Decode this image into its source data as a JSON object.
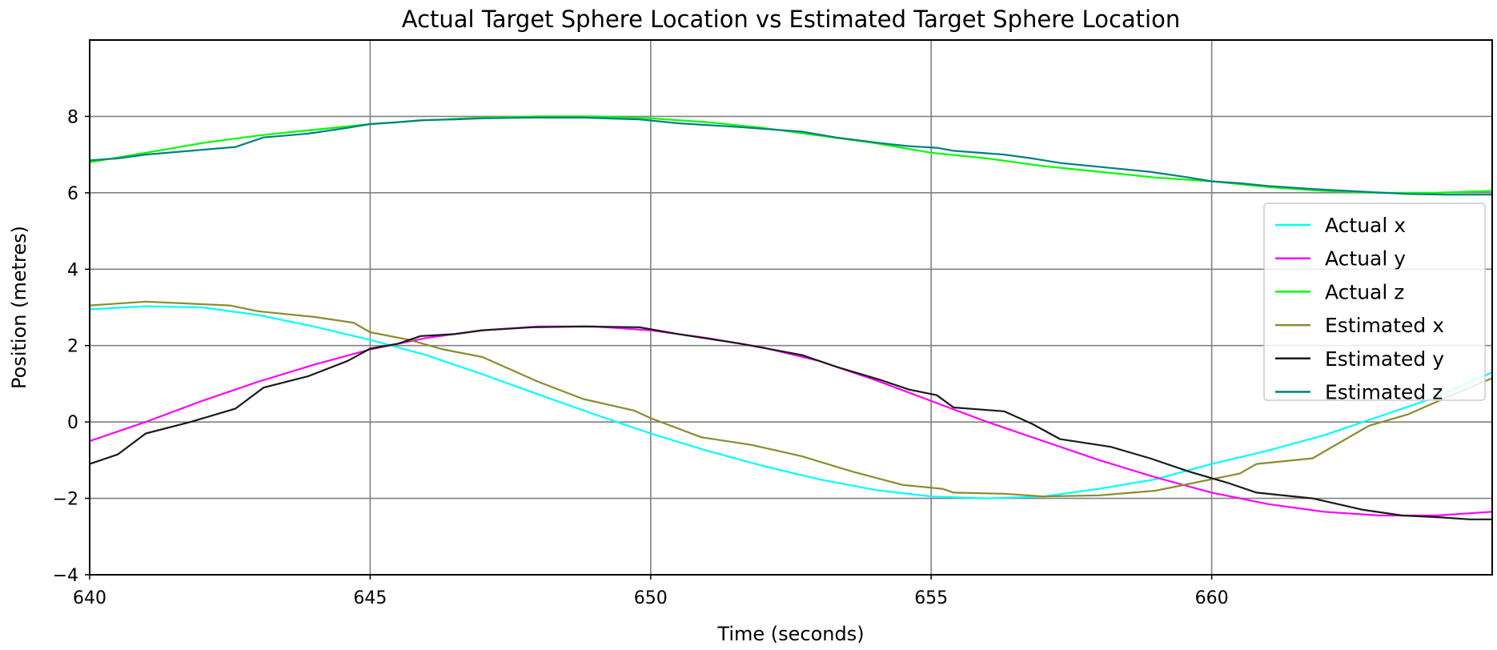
{
  "chart_data": {
    "type": "line",
    "title": "Actual Target Sphere Location vs Estimated Target Sphere Location",
    "xlabel": "Time (seconds)",
    "ylabel": "Position (metres)",
    "xlim": [
      640,
      665
    ],
    "ylim": [
      -4,
      10
    ],
    "xticks": [
      640,
      645,
      650,
      655,
      660
    ],
    "xtick_labels": [
      "640",
      "645",
      "650",
      "655",
      "660"
    ],
    "yticks": [
      -4,
      -2,
      0,
      2,
      4,
      6,
      8
    ],
    "ytick_labels": [
      "−4",
      "−2",
      "0",
      "2",
      "4",
      "6",
      "8"
    ],
    "grid": true,
    "legend_position": "center-right",
    "series": [
      {
        "name": "Actual x",
        "color": "#00ffff",
        "x": [
          640,
          641,
          642,
          643,
          644,
          645,
          646,
          647,
          648,
          649,
          650,
          651,
          652,
          653,
          654,
          655,
          656,
          657,
          658,
          659,
          660,
          661,
          662,
          663,
          664,
          665
        ],
        "y": [
          2.95,
          3.03,
          3.0,
          2.8,
          2.5,
          2.15,
          1.75,
          1.25,
          0.72,
          0.2,
          -0.3,
          -0.75,
          -1.15,
          -1.5,
          -1.78,
          -1.95,
          -2.0,
          -1.95,
          -1.75,
          -1.5,
          -1.1,
          -0.75,
          -0.35,
          0.15,
          0.65,
          1.3
        ]
      },
      {
        "name": "Actual y",
        "color": "#ff00ff",
        "x": [
          640,
          641,
          642,
          643,
          644,
          645,
          646,
          647,
          648,
          649,
          650,
          651,
          652,
          653,
          654,
          655,
          656,
          657,
          658,
          659,
          660,
          661,
          662,
          663,
          664,
          665
        ],
        "y": [
          -0.5,
          0.0,
          0.55,
          1.05,
          1.5,
          1.9,
          2.2,
          2.4,
          2.5,
          2.5,
          2.4,
          2.2,
          1.95,
          1.6,
          1.1,
          0.55,
          0.0,
          -0.5,
          -1.0,
          -1.45,
          -1.85,
          -2.15,
          -2.35,
          -2.45,
          -2.45,
          -2.35
        ]
      },
      {
        "name": "Actual z",
        "color": "#00ff00",
        "x": [
          640,
          641,
          642,
          643,
          644,
          645,
          646,
          647,
          648,
          649,
          650,
          651,
          652,
          653,
          654,
          655,
          656,
          657,
          658,
          659,
          660,
          661,
          662,
          663,
          664,
          665
        ],
        "y": [
          6.8,
          7.05,
          7.3,
          7.5,
          7.65,
          7.8,
          7.9,
          7.97,
          8.0,
          8.0,
          7.95,
          7.85,
          7.7,
          7.5,
          7.3,
          7.05,
          6.9,
          6.7,
          6.55,
          6.4,
          6.3,
          6.15,
          6.05,
          6.0,
          6.0,
          6.05
        ]
      },
      {
        "name": "Estimated x",
        "color": "#8b8b2e",
        "x": [
          640,
          641,
          642.5,
          643,
          644,
          644.7,
          645,
          645.7,
          646.3,
          647,
          648,
          648.8,
          649.7,
          650,
          650.9,
          651.8,
          652.7,
          653.6,
          654.5,
          655.2,
          655.4,
          656.3,
          657,
          658,
          659,
          660,
          660.5,
          660.8,
          661.8,
          662.8,
          663.5,
          664.2,
          665
        ],
        "y": [
          3.05,
          3.15,
          3.05,
          2.9,
          2.75,
          2.6,
          2.35,
          2.15,
          1.9,
          1.7,
          1.05,
          0.6,
          0.3,
          0.1,
          -0.4,
          -0.6,
          -0.9,
          -1.3,
          -1.65,
          -1.75,
          -1.85,
          -1.88,
          -1.95,
          -1.92,
          -1.8,
          -1.5,
          -1.35,
          -1.1,
          -0.95,
          -0.1,
          0.2,
          0.65,
          1.15
        ]
      },
      {
        "name": "Estimated y",
        "color": "#1a1a1a",
        "x": [
          640,
          640.5,
          641,
          641.8,
          642.6,
          643.1,
          643.9,
          644.6,
          645,
          645.5,
          645.9,
          646.5,
          647,
          647.9,
          648.8,
          649.8,
          650.5,
          651.6,
          652.7,
          653.3,
          654.1,
          654.6,
          655.1,
          655.4,
          656.3,
          656.8,
          657.3,
          658.2,
          658.9,
          659.6,
          660.3,
          660.8,
          661.8,
          662.7,
          663.4,
          664.1,
          664.6,
          665
        ],
        "y": [
          -1.1,
          -0.85,
          -0.3,
          0.0,
          0.35,
          0.9,
          1.2,
          1.6,
          1.92,
          2.05,
          2.25,
          2.3,
          2.4,
          2.48,
          2.5,
          2.48,
          2.3,
          2.05,
          1.75,
          1.45,
          1.1,
          0.85,
          0.7,
          0.38,
          0.28,
          -0.05,
          -0.45,
          -0.65,
          -0.95,
          -1.3,
          -1.6,
          -1.85,
          -2.0,
          -2.3,
          -2.45,
          -2.5,
          -2.55,
          -2.55
        ]
      },
      {
        "name": "Estimated z",
        "color": "#008080",
        "x": [
          640,
          640.5,
          641,
          641.8,
          642.6,
          643.1,
          643.9,
          644.6,
          645,
          645.5,
          645.9,
          646.5,
          647,
          647.9,
          648.8,
          649.8,
          650.5,
          651.6,
          652.7,
          653.3,
          654.1,
          654.6,
          655.1,
          655.4,
          656.3,
          656.8,
          657.3,
          658.2,
          658.9,
          659.6,
          660,
          660.5,
          661,
          661.8,
          662.8,
          663.5,
          664.2,
          665
        ],
        "y": [
          6.85,
          6.9,
          7.0,
          7.1,
          7.2,
          7.45,
          7.55,
          7.7,
          7.8,
          7.85,
          7.9,
          7.92,
          7.95,
          7.97,
          7.97,
          7.92,
          7.82,
          7.72,
          7.6,
          7.45,
          7.3,
          7.22,
          7.18,
          7.1,
          7.0,
          6.9,
          6.78,
          6.65,
          6.55,
          6.4,
          6.3,
          6.25,
          6.18,
          6.1,
          6.02,
          5.97,
          5.95,
          5.95
        ]
      }
    ]
  }
}
